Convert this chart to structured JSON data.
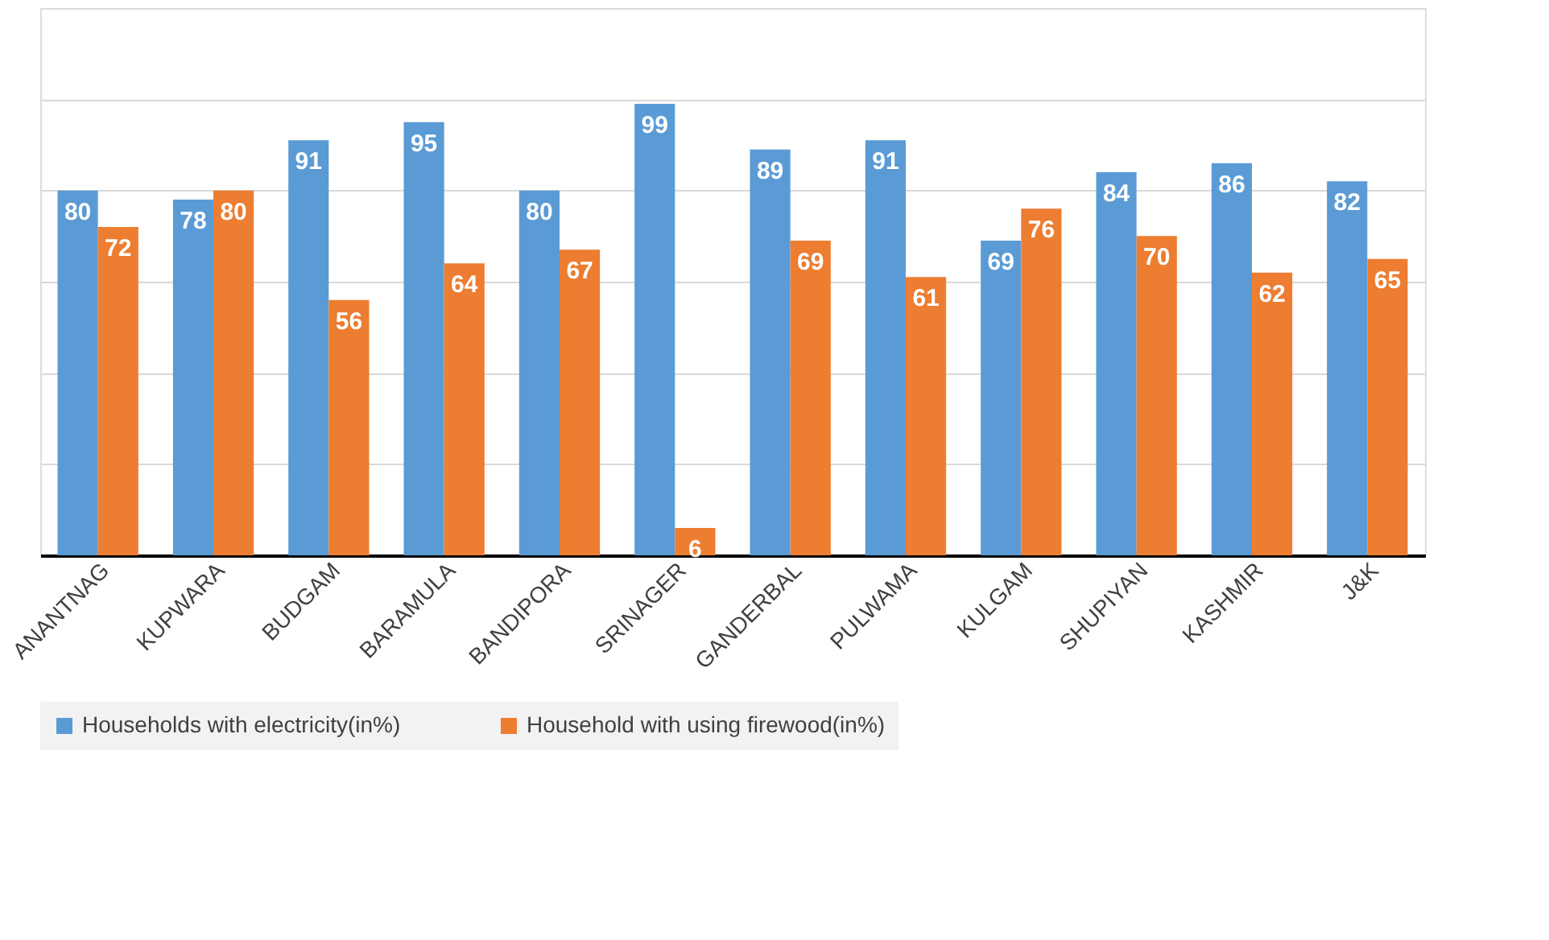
{
  "chart_data": {
    "type": "bar",
    "categories": [
      "ANANTNAG",
      "KUPWARA",
      "BUDGAM",
      "BARAMULA",
      "BANDIPORA",
      "SRINAGER",
      "GANDERBAL",
      "PULWAMA",
      "KULGAM",
      "SHUPIYAN",
      "KASHMIR",
      "J&K"
    ],
    "series": [
      {
        "name": "Households with electricity(in%)",
        "color": "#5b9bd5",
        "values": [
          80,
          78,
          91,
          95,
          80,
          99,
          89,
          91,
          69,
          84,
          86,
          82
        ]
      },
      {
        "name": "Household with using firewood(in%)",
        "color": "#ed7d31",
        "values": [
          72,
          80,
          56,
          64,
          67,
          6,
          69,
          61,
          76,
          70,
          62,
          65
        ]
      }
    ],
    "ylim": [
      0,
      120
    ],
    "yticks": [
      {
        "value": 0,
        "label": null
      },
      {
        "value": 20,
        "label": null
      },
      {
        "value": 40,
        "label": null
      },
      {
        "value": 60,
        "label": null
      },
      {
        "value": 80,
        "label": null
      },
      {
        "value": 100,
        "label": null
      },
      {
        "value": 120,
        "label": null
      }
    ],
    "tick_labels": "x",
    "grid": "y",
    "data_labels": true,
    "legend": "bottom"
  }
}
